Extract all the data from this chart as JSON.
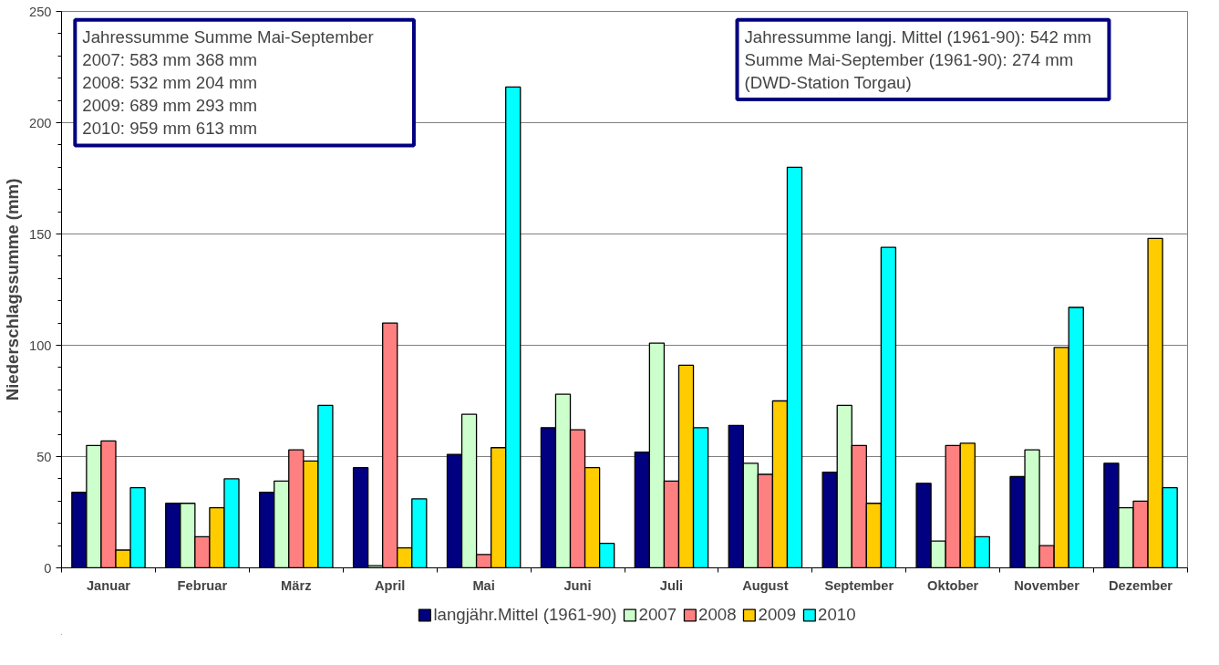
{
  "chart_data": {
    "type": "bar",
    "ylabel": "Niederschlagssumme (mm)",
    "categories": [
      "Januar",
      "Februar",
      "März",
      "April",
      "Mai",
      "Juni",
      "Juli",
      "August",
      "September",
      "Oktober",
      "November",
      "Dezember"
    ],
    "series": [
      {
        "name": "langjähr.Mittel (1961-90)",
        "color": "#000080",
        "values": [
          34,
          29,
          34,
          45,
          51,
          63,
          52,
          64,
          43,
          38,
          41,
          47
        ]
      },
      {
        "name": "2007",
        "color": "#ccffcc",
        "values": [
          55,
          29,
          39,
          1,
          69,
          78,
          101,
          47,
          73,
          12,
          53,
          27
        ]
      },
      {
        "name": "2008",
        "color": "#ff8080",
        "values": [
          57,
          14,
          53,
          110,
          6,
          62,
          39,
          42,
          55,
          55,
          10,
          30
        ]
      },
      {
        "name": "2009",
        "color": "#ffcc00",
        "values": [
          8,
          27,
          48,
          9,
          54,
          45,
          91,
          75,
          29,
          56,
          99,
          148
        ]
      },
      {
        "name": "2010",
        "color": "#00ffff",
        "values": [
          36,
          40,
          73,
          31,
          216,
          11,
          63,
          180,
          144,
          14,
          117,
          36
        ]
      }
    ],
    "ylim": [
      0,
      250
    ],
    "yticks": [
      0,
      50,
      100,
      150,
      200,
      250
    ],
    "grid": "y",
    "legend": "bottom",
    "annotations": [
      "Jahressumme        Summe Mai-September\n2007:   583 mm                368 mm\n2008:   532 mm                204 mm\n2009:   689 mm                293 mm\n2010:   959 mm                613 mm",
      "Jahressumme langj. Mittel (1961-90): 542 mm\nSumme Mai-September (1961-90):       274 mm\n(DWD-Station Torgau)"
    ]
  }
}
